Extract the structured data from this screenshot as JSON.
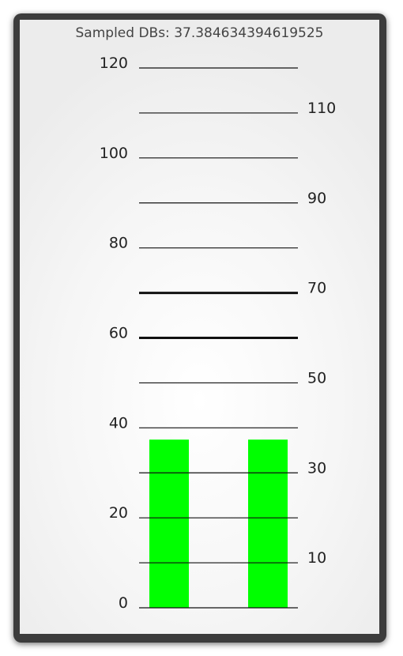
{
  "header": {
    "sampled_label": "Sampled DBs: 37.384634394619525"
  },
  "meter": {
    "min": 0,
    "max": 120,
    "step": 10,
    "level": 37.384634394619525,
    "thick_lines": [
      60,
      70
    ],
    "tick_labels": [
      "0",
      "10",
      "20",
      "30",
      "40",
      "50",
      "60",
      "70",
      "80",
      "90",
      "100",
      "110",
      "120"
    ],
    "bar_color": "#00ff00",
    "line_color": "#111111",
    "bars": [
      "left",
      "right"
    ]
  }
}
